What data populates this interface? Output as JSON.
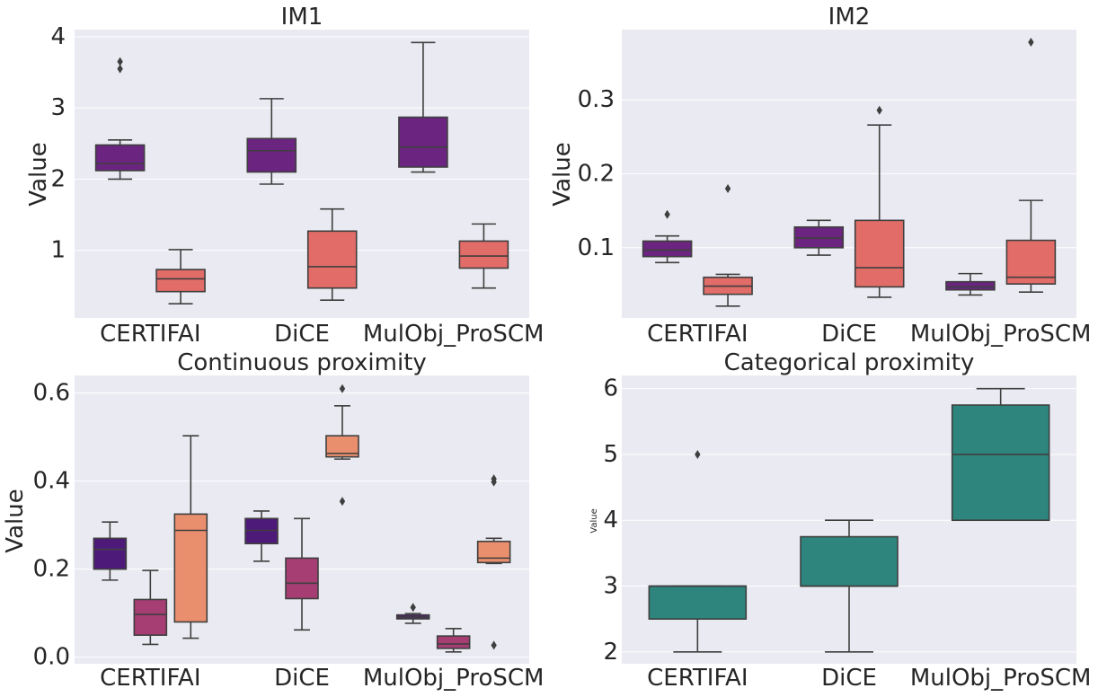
{
  "chart_data": [
    {
      "type": "box",
      "title": "IM1",
      "ylabel": "Value",
      "ylim": [
        0.05,
        4.1
      ],
      "yticks": [
        "1",
        "2",
        "3",
        "4"
      ],
      "categories": [
        "CERTIFAI",
        "DiCE",
        "MulObj_ProSCM"
      ],
      "series": [
        {
          "color": "#6b2480",
          "boxes": [
            {
              "whislo": 2.0,
              "q1": 2.12,
              "med": 2.22,
              "q3": 2.48,
              "whishi": 2.55,
              "fliers": [
                3.55,
                3.65
              ]
            },
            {
              "whislo": 1.93,
              "q1": 2.1,
              "med": 2.4,
              "q3": 2.57,
              "whishi": 3.13,
              "fliers": []
            },
            {
              "whislo": 2.1,
              "q1": 2.17,
              "med": 2.45,
              "q3": 2.87,
              "whishi": 3.92,
              "fliers": []
            }
          ]
        },
        {
          "color": "#e26c68",
          "boxes": [
            {
              "whislo": 0.25,
              "q1": 0.42,
              "med": 0.6,
              "q3": 0.73,
              "whishi": 1.01,
              "fliers": []
            },
            {
              "whislo": 0.3,
              "q1": 0.47,
              "med": 0.77,
              "q3": 1.27,
              "whishi": 1.58,
              "fliers": []
            },
            {
              "whislo": 0.47,
              "q1": 0.75,
              "med": 0.92,
              "q3": 1.13,
              "whishi": 1.37,
              "fliers": []
            }
          ]
        }
      ]
    },
    {
      "type": "box",
      "title": "IM2",
      "ylabel": "Value",
      "ylim": [
        0.005,
        0.395
      ],
      "yticks": [
        "0.1",
        "0.2",
        "0.3"
      ],
      "categories": [
        "CERTIFAI",
        "DiCE",
        "MulObj_ProSCM"
      ],
      "series": [
        {
          "color": "#6b2480",
          "boxes": [
            {
              "whislo": 0.08,
              "q1": 0.088,
              "med": 0.097,
              "q3": 0.109,
              "whishi": 0.116,
              "fliers": [
                0.145
              ]
            },
            {
              "whislo": 0.09,
              "q1": 0.1,
              "med": 0.113,
              "q3": 0.128,
              "whishi": 0.137,
              "fliers": []
            },
            {
              "whislo": 0.036,
              "q1": 0.043,
              "med": 0.047,
              "q3": 0.054,
              "whishi": 0.065,
              "fliers": []
            }
          ]
        },
        {
          "color": "#e26c68",
          "boxes": [
            {
              "whislo": 0.021,
              "q1": 0.037,
              "med": 0.048,
              "q3": 0.06,
              "whishi": 0.064,
              "fliers": [
                0.18
              ]
            },
            {
              "whislo": 0.033,
              "q1": 0.047,
              "med": 0.073,
              "q3": 0.137,
              "whishi": 0.266,
              "fliers": [
                0.286
              ]
            },
            {
              "whislo": 0.04,
              "q1": 0.051,
              "med": 0.06,
              "q3": 0.11,
              "whishi": 0.164,
              "fliers": [
                0.378
              ]
            }
          ]
        }
      ]
    },
    {
      "type": "box",
      "title": "Continuous proximity",
      "ylabel": "Value",
      "ylim": [
        -0.015,
        0.64
      ],
      "yticks": [
        "0.0",
        "0.2",
        "0.4",
        "0.6"
      ],
      "categories": [
        "CERTIFAI",
        "DiCE",
        "MulObj_ProSCM"
      ],
      "series": [
        {
          "color": "#4e1a7a",
          "boxes": [
            {
              "whislo": 0.175,
              "q1": 0.2,
              "med": 0.245,
              "q3": 0.27,
              "whishi": 0.307,
              "fliers": []
            },
            {
              "whislo": 0.218,
              "q1": 0.258,
              "med": 0.288,
              "q3": 0.315,
              "whishi": 0.332,
              "fliers": []
            },
            {
              "whislo": 0.077,
              "q1": 0.087,
              "med": 0.091,
              "q3": 0.096,
              "whishi": 0.099,
              "fliers": [
                0.113
              ]
            }
          ]
        },
        {
          "color": "#a63d73",
          "boxes": [
            {
              "whislo": 0.029,
              "q1": 0.05,
              "med": 0.097,
              "q3": 0.131,
              "whishi": 0.197,
              "fliers": []
            },
            {
              "whislo": 0.062,
              "q1": 0.133,
              "med": 0.168,
              "q3": 0.225,
              "whishi": 0.315,
              "fliers": []
            },
            {
              "whislo": 0.012,
              "q1": 0.02,
              "med": 0.03,
              "q3": 0.048,
              "whishi": 0.065,
              "fliers": []
            }
          ]
        },
        {
          "color": "#ea8f6e",
          "boxes": [
            {
              "whislo": 0.043,
              "q1": 0.08,
              "med": 0.288,
              "q3": 0.325,
              "whishi": 0.503,
              "fliers": []
            },
            {
              "whislo": 0.45,
              "q1": 0.455,
              "med": 0.463,
              "q3": 0.503,
              "whishi": 0.571,
              "fliers": [
                0.61,
                0.354
              ]
            },
            {
              "whislo": 0.213,
              "q1": 0.215,
              "med": 0.225,
              "q3": 0.263,
              "whishi": 0.27,
              "fliers": [
                0.398,
                0.405,
                0.027
              ]
            }
          ]
        }
      ]
    },
    {
      "type": "box",
      "title": "Categorical proximity",
      "ylabel": "Value",
      "ylim": [
        1.82,
        6.2
      ],
      "yticks": [
        "2",
        "3",
        "4",
        "5",
        "6"
      ],
      "categories": [
        "CERTIFAI",
        "DiCE",
        "MulObj_ProSCM"
      ],
      "series": [
        {
          "color": "#2e857e",
          "boxes": [
            {
              "whislo": 2.0,
              "q1": 2.5,
              "med": 3.0,
              "q3": 3.0,
              "whishi": 3.0,
              "fliers": [
                5.0
              ]
            },
            {
              "whislo": 2.0,
              "q1": 3.0,
              "med": 3.0,
              "q3": 3.75,
              "whishi": 4.0,
              "fliers": []
            },
            {
              "whislo": 4.0,
              "q1": 4.0,
              "med": 5.0,
              "q3": 5.75,
              "whishi": 6.0,
              "fliers": []
            }
          ]
        }
      ]
    }
  ]
}
